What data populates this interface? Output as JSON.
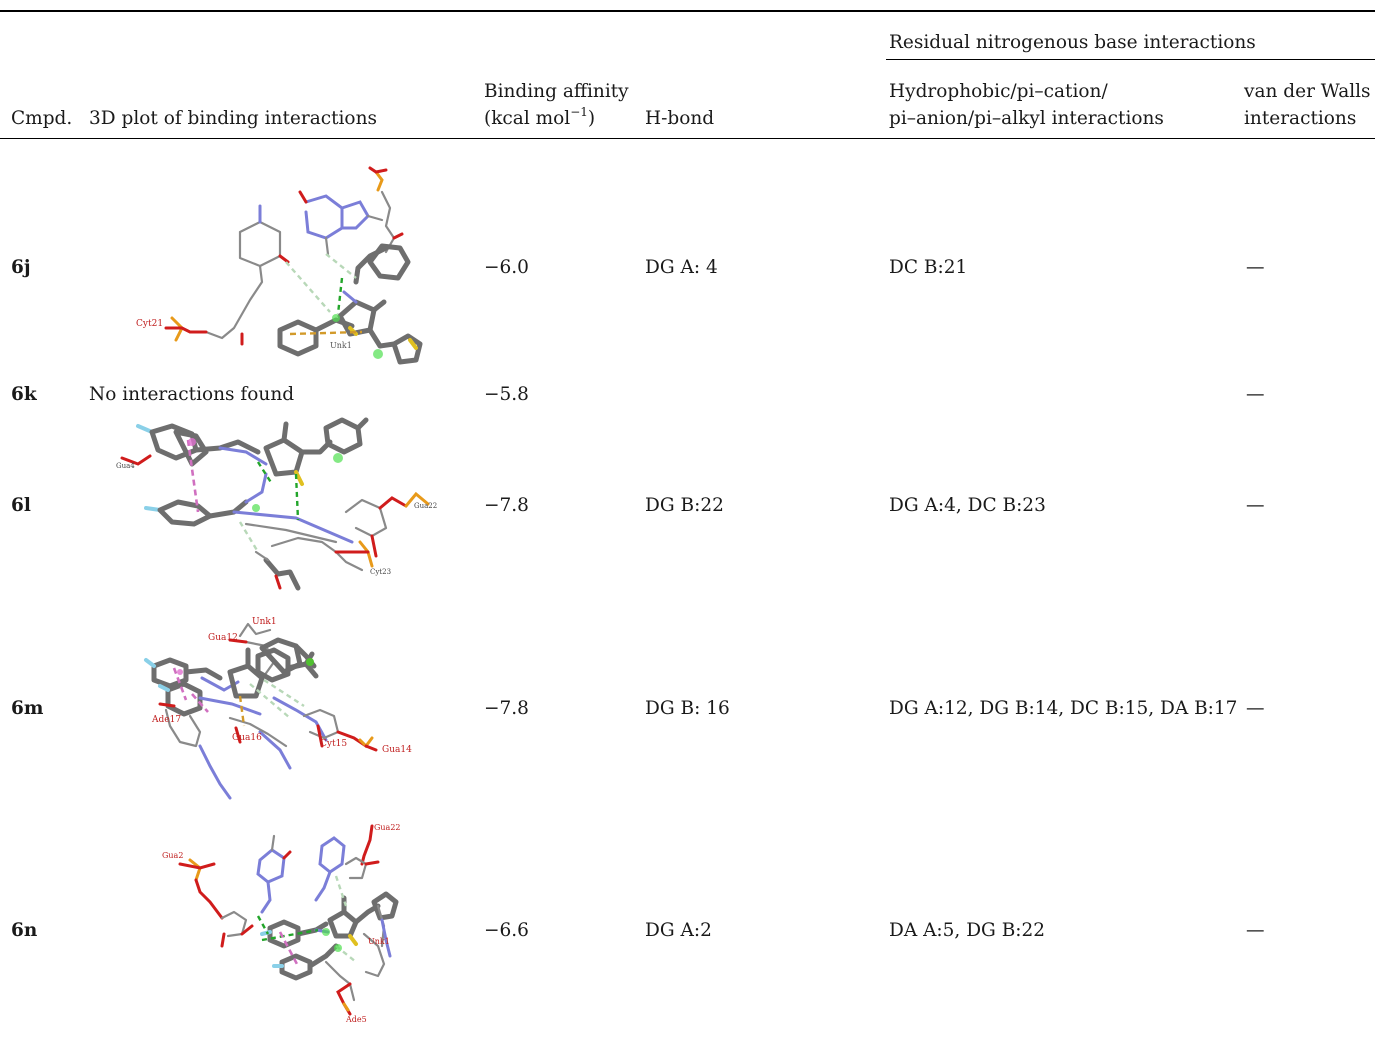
{
  "table": {
    "group_header": "Residual nitrogenous base interactions",
    "columns": {
      "cmpd": "Cmpd.",
      "plot": "3D plot of binding interactions",
      "affinity_line1": "Binding affinity",
      "affinity_line2_pre": "(kcal mol",
      "affinity_sup": "−1",
      "affinity_line2_post": ")",
      "hbond": "H-bond",
      "hydro_line1": "Hydrophobic/pi–cation/",
      "hydro_line2": "pi–anion/pi–alkyl interactions",
      "vdw_line1": "van der Walls",
      "vdw_line2": "interactions"
    },
    "rows": [
      {
        "cmpd": "6j",
        "plot_text": "",
        "affinity": "−6.0",
        "hbond": "DG A: 4",
        "hydrophobic": "DC B:21",
        "vdw": "—",
        "plot_labels": [
          "Cyt21",
          "Unk1"
        ]
      },
      {
        "cmpd": "6k",
        "plot_text": "No interactions found",
        "affinity": "−5.8",
        "hbond": "",
        "hydrophobic": "",
        "vdw": "—"
      },
      {
        "cmpd": "6l",
        "plot_text": "",
        "affinity": "−7.8",
        "hbond": "DG B:22",
        "hydrophobic": "DG A:4, DC B:23",
        "vdw": "—",
        "plot_labels": [
          "Gua4",
          "Gua22",
          "Cyt23"
        ]
      },
      {
        "cmpd": "6m",
        "plot_text": "",
        "affinity": "−7.8",
        "hbond": "DG B: 16",
        "hydrophobic": "DG A:12, DG B:14, DC B:15, DA B:17",
        "vdw": "—",
        "plot_labels": [
          "Unk1",
          "Gua12",
          "Ade17",
          "Gua16",
          "Cyt15",
          "Gua14"
        ]
      },
      {
        "cmpd": "6n",
        "plot_text": "",
        "affinity": "−6.6",
        "hbond": "DG A:2",
        "hydrophobic": "DA A:5, DG B:22",
        "vdw": "—",
        "plot_labels": [
          "Gua2",
          "Gua22",
          "Unk1",
          "Ade5"
        ]
      }
    ]
  }
}
